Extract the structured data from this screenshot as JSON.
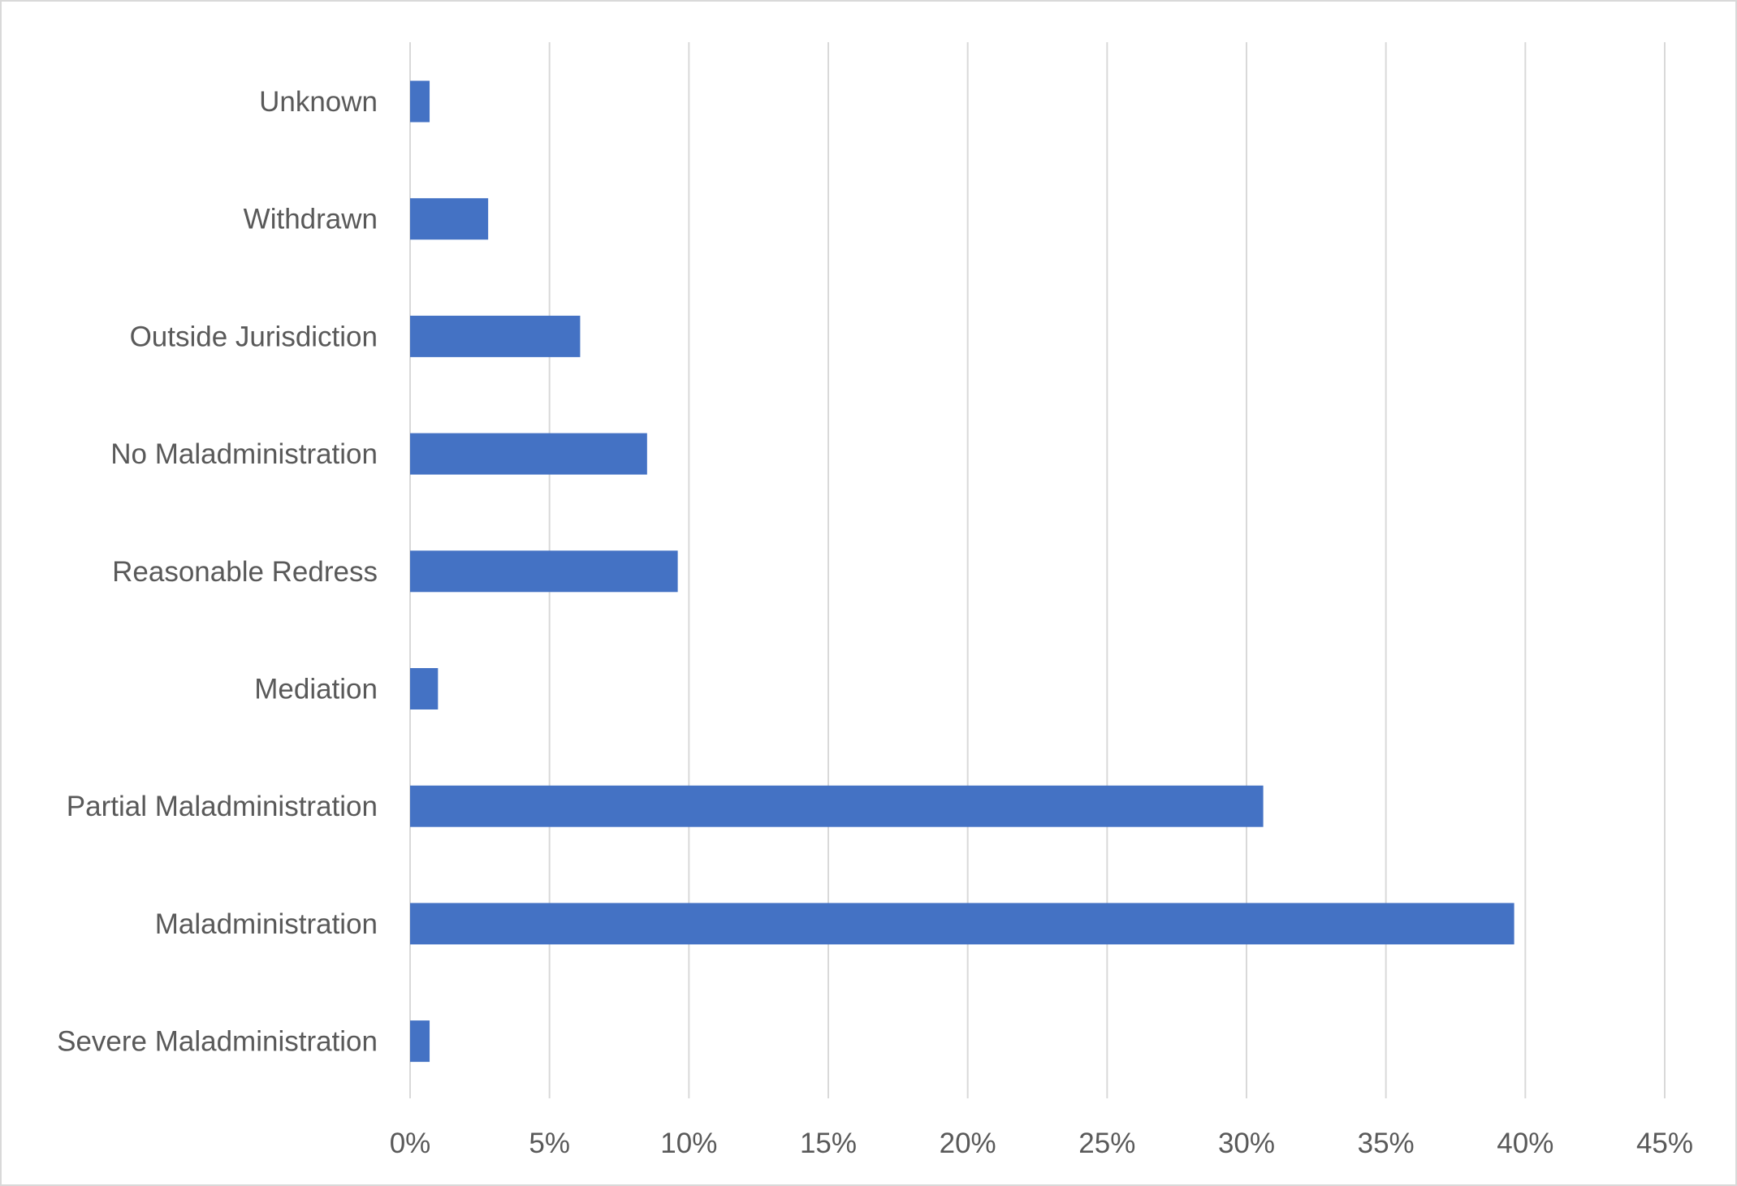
{
  "chart_data": {
    "type": "bar",
    "orientation": "horizontal",
    "categories": [
      "Unknown",
      "Withdrawn",
      "Outside Jurisdiction",
      "No Maladministration",
      "Reasonable Redress",
      "Mediation",
      "Partial Maladministration",
      "Maladministration",
      "Severe Maladministration"
    ],
    "values": [
      0.7,
      2.8,
      6.1,
      8.5,
      9.6,
      1.0,
      30.6,
      39.6,
      0.7
    ],
    "unit": "%",
    "xlim": [
      0,
      45
    ],
    "xticks": [
      0,
      5,
      10,
      15,
      20,
      25,
      30,
      35,
      40,
      45
    ],
    "xtick_labels": [
      "0%",
      "5%",
      "10%",
      "15%",
      "20%",
      "25%",
      "30%",
      "35%",
      "40%",
      "45%"
    ],
    "title": "",
    "xlabel": "",
    "ylabel": "",
    "grid": "vertical",
    "legend": "none",
    "bar_color": "#4472C4",
    "grid_color": "#d9d9d9",
    "text_color": "#595959"
  }
}
